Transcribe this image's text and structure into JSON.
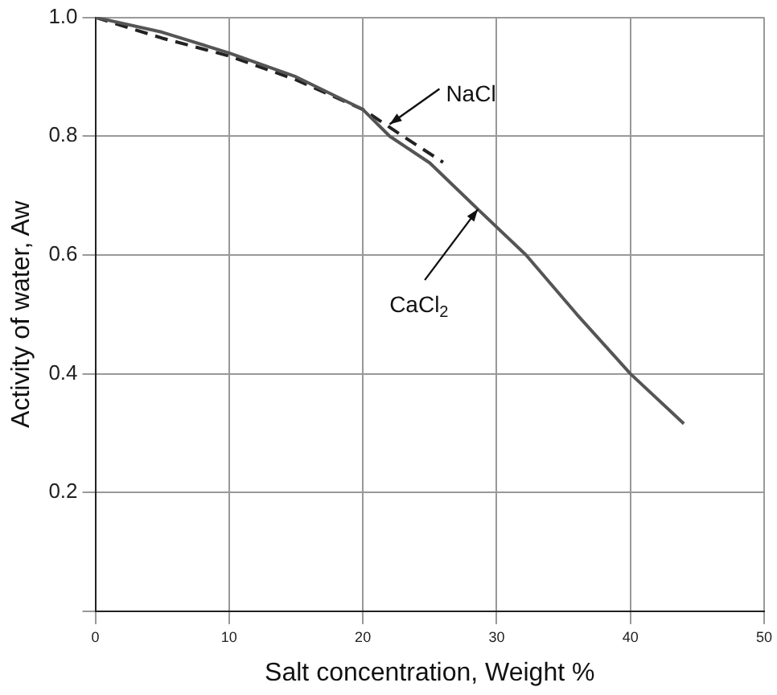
{
  "chart_data": {
    "type": "line",
    "xlabel": "Salt concentration, Weight %",
    "ylabel": "Activity of water, Aw",
    "xlim": [
      0,
      50
    ],
    "xticks": [
      0,
      10,
      20,
      30,
      40,
      50
    ],
    "ylim": [
      0,
      1.0
    ],
    "yticks": [
      {
        "value": 0,
        "label": null
      },
      0.2,
      0.4,
      0.6,
      0.8,
      {
        "value": 1.0,
        "label": "1.0"
      }
    ],
    "grid": true,
    "legend": false,
    "marker": "none",
    "series": [
      {
        "color": "#555555",
        "line_style": "solid",
        "x": [
          0,
          5,
          10,
          15,
          20,
          22,
          25,
          28.6,
          32.2,
          36,
          40,
          44
        ],
        "values": [
          1.0,
          0.975,
          0.94,
          0.9,
          0.845,
          0.8,
          0.755,
          0.677,
          0.6,
          0.5,
          0.4,
          0.316
        ]
      },
      {
        "color": "#222222",
        "line_style": "dashed",
        "x": [
          0,
          5,
          10,
          15,
          20,
          23,
          26
        ],
        "values": [
          1.0,
          0.965,
          0.935,
          0.895,
          0.845,
          0.8,
          0.756
        ]
      }
    ],
    "annotations": [
      {
        "text": "NaCl",
        "x": 22,
        "y": 0.82
      },
      {
        "text": "CaCl$_{2}$",
        "x": 28.6,
        "y": 0.677
      }
    ]
  }
}
